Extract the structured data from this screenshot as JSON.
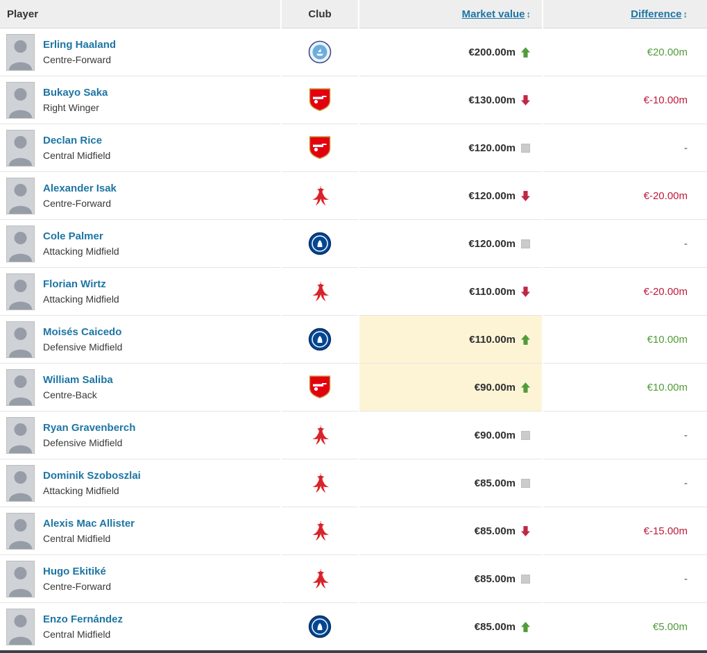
{
  "header": {
    "player_label": "Player",
    "club_label": "Club",
    "market_value_label": "Market value",
    "difference_label": "Difference",
    "sort_icon": "↕"
  },
  "colors": {
    "green": "#519b3b",
    "red": "#c02645",
    "link_blue": "#1d75a3",
    "highlight": "#fdf4d6",
    "no_change_gray": "#cbcbcb"
  },
  "rows": [
    {
      "name": "Erling Haaland",
      "position": "Centre-Forward",
      "club": "manchester-city",
      "value": "€200.00m",
      "trend": "up",
      "diff": "€20.00m",
      "diff_type": "positive",
      "highlight": false
    },
    {
      "name": "Bukayo Saka",
      "position": "Right Winger",
      "club": "arsenal",
      "value": "€130.00m",
      "trend": "down",
      "diff": "€-10.00m",
      "diff_type": "negative",
      "highlight": false
    },
    {
      "name": "Declan Rice",
      "position": "Central Midfield",
      "club": "arsenal",
      "value": "€120.00m",
      "trend": "same",
      "diff": "-",
      "diff_type": "none",
      "highlight": false
    },
    {
      "name": "Alexander Isak",
      "position": "Centre-Forward",
      "club": "liverpool",
      "value": "€120.00m",
      "trend": "down",
      "diff": "€-20.00m",
      "diff_type": "negative",
      "highlight": false
    },
    {
      "name": "Cole Palmer",
      "position": "Attacking Midfield",
      "club": "chelsea",
      "value": "€120.00m",
      "trend": "same",
      "diff": "-",
      "diff_type": "none",
      "highlight": false
    },
    {
      "name": "Florian Wirtz",
      "position": "Attacking Midfield",
      "club": "liverpool",
      "value": "€110.00m",
      "trend": "down",
      "diff": "€-20.00m",
      "diff_type": "negative",
      "highlight": false
    },
    {
      "name": "Moisés Caicedo",
      "position": "Defensive Midfield",
      "club": "chelsea",
      "value": "€110.00m",
      "trend": "up",
      "diff": "€10.00m",
      "diff_type": "positive",
      "highlight": true
    },
    {
      "name": "William Saliba",
      "position": "Centre-Back",
      "club": "arsenal",
      "value": "€90.00m",
      "trend": "up",
      "diff": "€10.00m",
      "diff_type": "positive",
      "highlight": true
    },
    {
      "name": "Ryan Gravenberch",
      "position": "Defensive Midfield",
      "club": "liverpool",
      "value": "€90.00m",
      "trend": "same",
      "diff": "-",
      "diff_type": "none",
      "highlight": false
    },
    {
      "name": "Dominik Szoboszlai",
      "position": "Attacking Midfield",
      "club": "liverpool",
      "value": "€85.00m",
      "trend": "same",
      "diff": "-",
      "diff_type": "none",
      "highlight": false
    },
    {
      "name": "Alexis Mac Allister",
      "position": "Central Midfield",
      "club": "liverpool",
      "value": "€85.00m",
      "trend": "down",
      "diff": "€-15.00m",
      "diff_type": "negative",
      "highlight": false
    },
    {
      "name": "Hugo Ekitiké",
      "position": "Centre-Forward",
      "club": "liverpool",
      "value": "€85.00m",
      "trend": "same",
      "diff": "-",
      "diff_type": "none",
      "highlight": false
    },
    {
      "name": "Enzo Fernández",
      "position": "Central Midfield",
      "club": "chelsea",
      "value": "€85.00m",
      "trend": "up",
      "diff": "€5.00m",
      "diff_type": "positive",
      "highlight": false
    }
  ]
}
